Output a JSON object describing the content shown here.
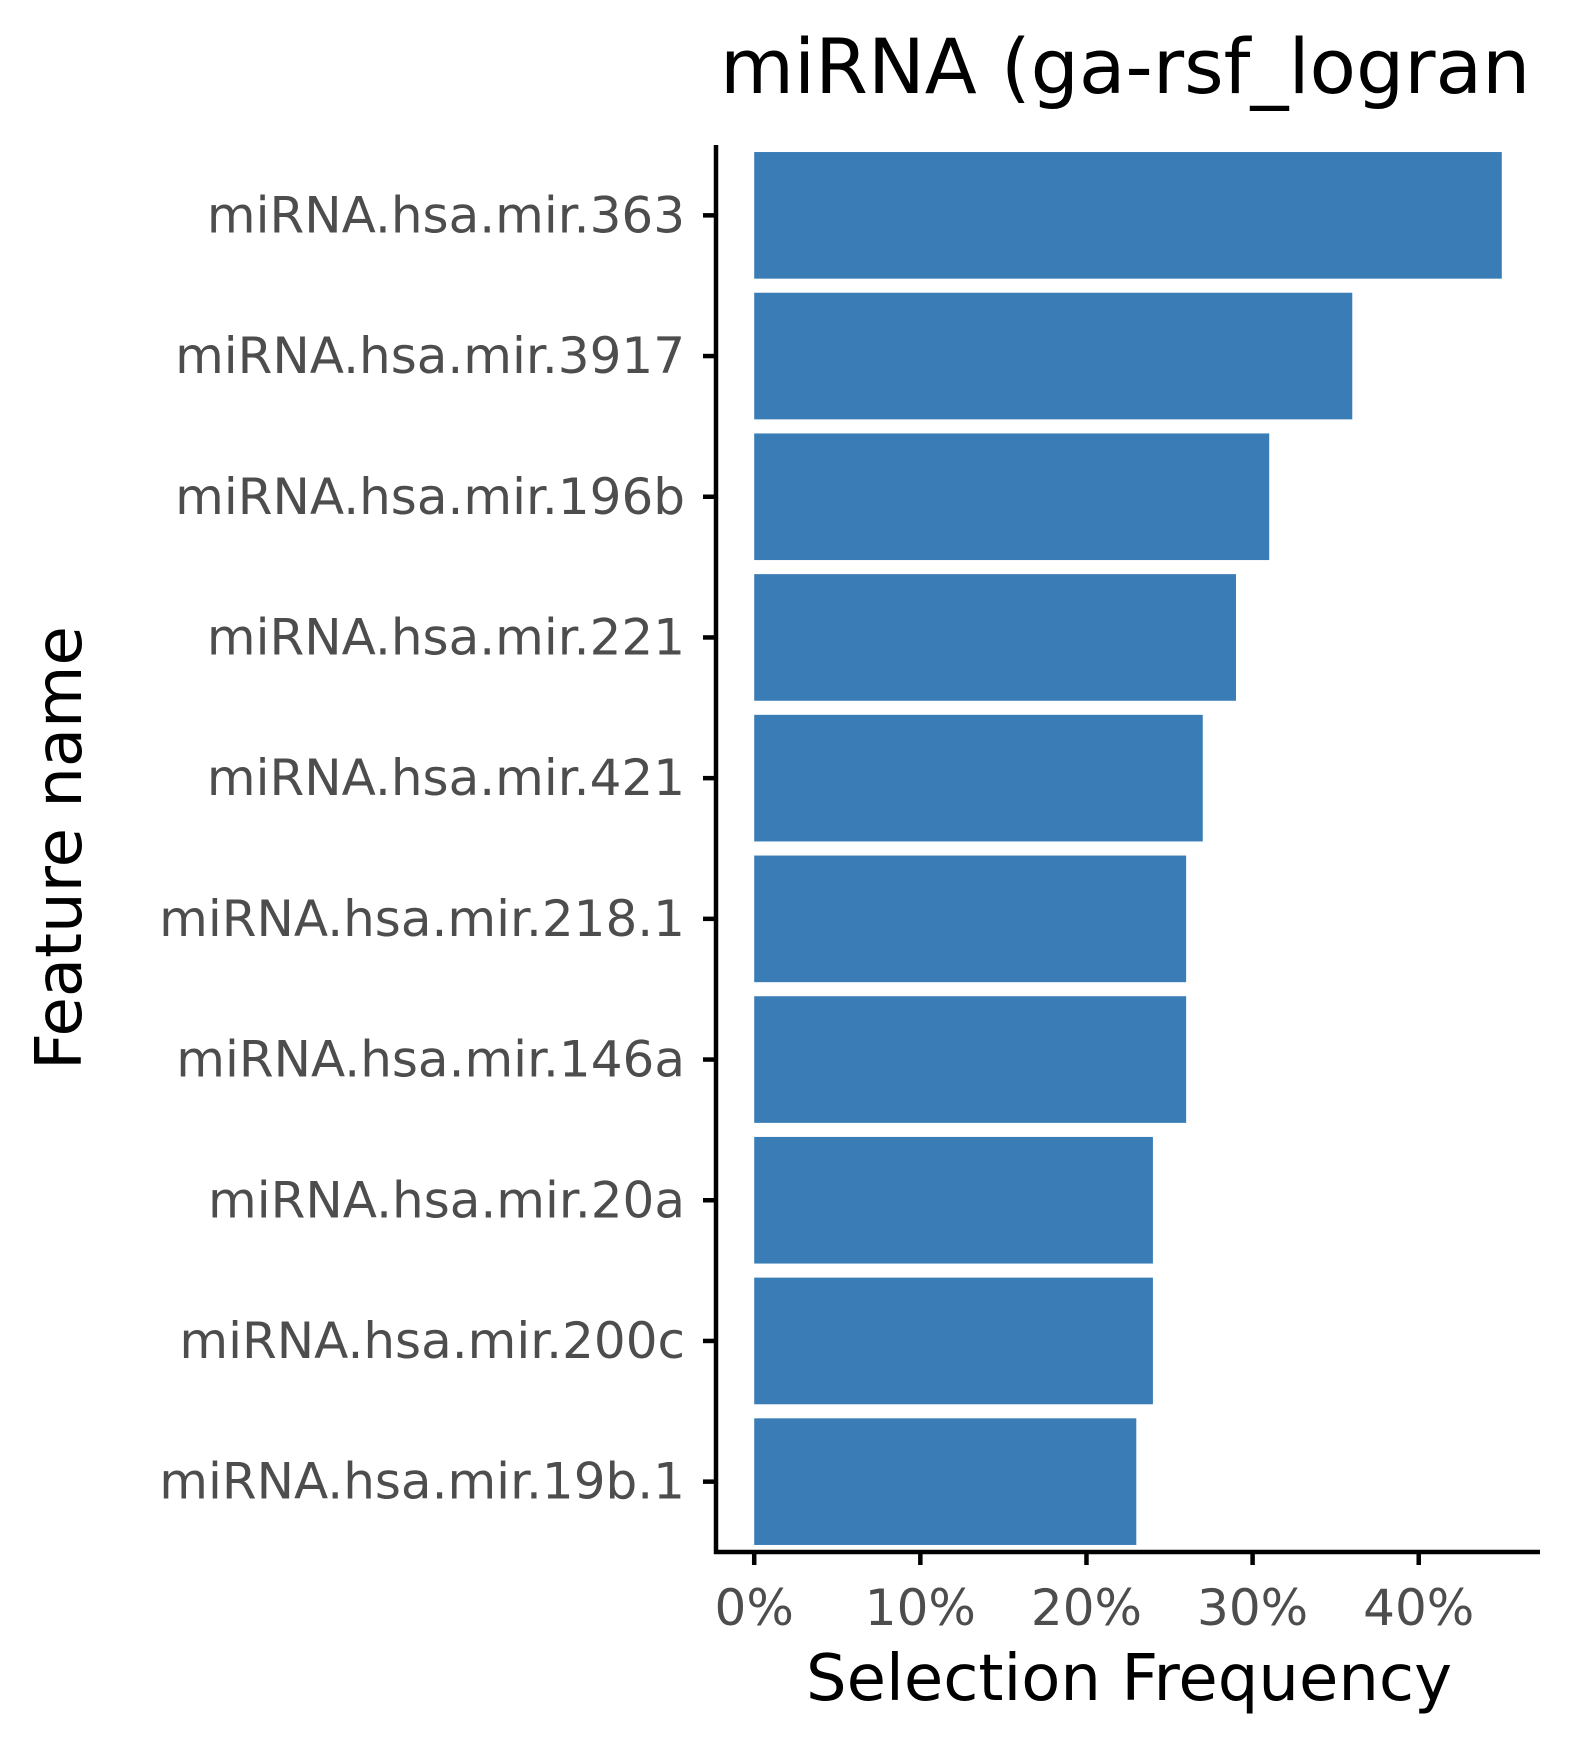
{
  "chart_data": {
    "type": "bar",
    "orientation": "horizontal",
    "title": "miRNA (ga-rsf_logran",
    "xlabel": "Selection Frequency",
    "ylabel": "Feature name",
    "categories": [
      "miRNA.hsa.mir.363",
      "miRNA.hsa.mir.3917",
      "miRNA.hsa.mir.196b",
      "miRNA.hsa.mir.221",
      "miRNA.hsa.mir.421",
      "miRNA.hsa.mir.218.1",
      "miRNA.hsa.mir.146a",
      "miRNA.hsa.mir.20a",
      "miRNA.hsa.mir.200c",
      "miRNA.hsa.mir.19b.1"
    ],
    "values": [
      45,
      36,
      31,
      29,
      27,
      26,
      26,
      24,
      24,
      23
    ],
    "value_unit": "%",
    "xlim": [
      -2.3,
      47.3
    ],
    "xticks": [
      0,
      10,
      20,
      30,
      40
    ],
    "xtick_labels": [
      "0%",
      "10%",
      "20%",
      "30%",
      "40%"
    ],
    "bar_color": "#3A7DB6",
    "grid": false,
    "legend": "none"
  }
}
